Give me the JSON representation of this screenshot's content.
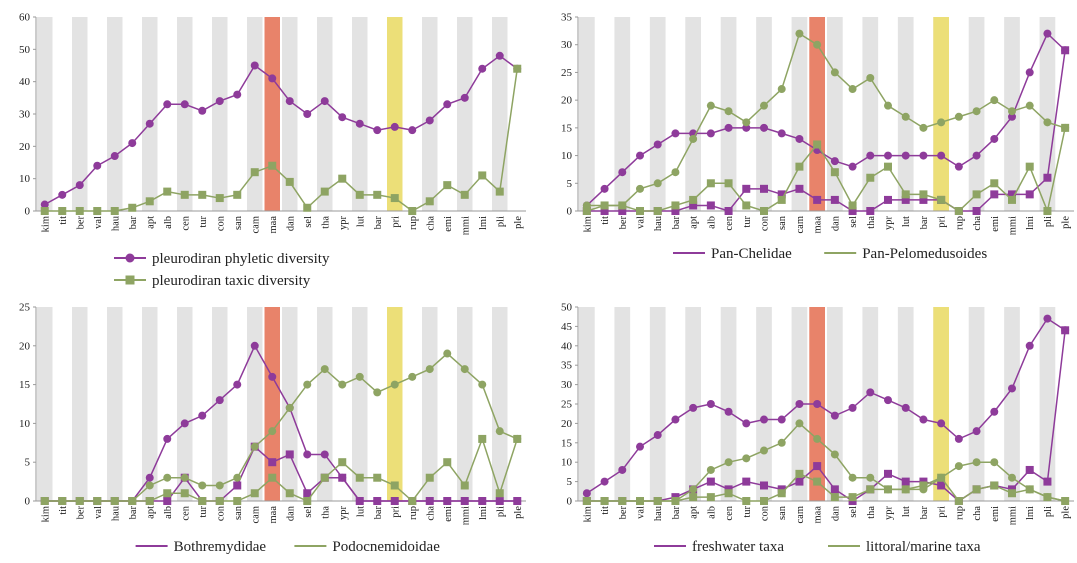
{
  "colors": {
    "purple": "#8e3b9a",
    "green": "#8ea463",
    "band_gray": "#e3e3e3",
    "highlight_red": "#e8836a",
    "highlight_yellow": "#ecdf78",
    "axis": "#9a9a9a"
  },
  "categories": [
    "kim",
    "tit",
    "ber",
    "val",
    "hau",
    "bar",
    "apt",
    "alb",
    "cen",
    "tur",
    "con",
    "san",
    "cam",
    "maa",
    "dan",
    "sel",
    "tha",
    "ypr",
    "lut",
    "bar",
    "pri",
    "rup",
    "cha",
    "emi",
    "mmi",
    "lmi",
    "pli",
    "ple"
  ],
  "chart_data": [
    {
      "id": "tl",
      "type": "line",
      "highlight_red_index": 13,
      "highlight_yellow_index": 20,
      "ylim": [
        0,
        60
      ],
      "yticks": [
        0,
        10,
        20,
        30,
        40,
        50,
        60
      ],
      "legend_layout": "stacked",
      "series": [
        {
          "name": "pleurodiran phyletic diversity",
          "color": "purple",
          "marker": "circle",
          "values": [
            2,
            5,
            8,
            14,
            17,
            21,
            27,
            33,
            33,
            31,
            34,
            36,
            45,
            41,
            34,
            30,
            34,
            29,
            27,
            25,
            26,
            25,
            28,
            33,
            35,
            44,
            48,
            44
          ]
        },
        {
          "name": "pleurodiran taxic diversity",
          "color": "green",
          "marker": "square",
          "values": [
            0,
            0,
            0,
            0,
            0,
            1,
            3,
            6,
            5,
            5,
            4,
            5,
            12,
            14,
            9,
            1,
            6,
            10,
            5,
            5,
            4,
            0,
            3,
            8,
            5,
            11,
            6,
            44
          ]
        }
      ]
    },
    {
      "id": "tr",
      "type": "line",
      "highlight_red_index": 13,
      "highlight_yellow_index": 20,
      "ylim": [
        0,
        35
      ],
      "yticks": [
        0,
        5,
        10,
        15,
        20,
        25,
        30,
        35
      ],
      "legend_layout": "row",
      "series": [
        {
          "name": "Pan-Chelidae",
          "color": "purple",
          "marker": "circle",
          "legend": true,
          "values": [
            1,
            4,
            7,
            10,
            12,
            14,
            14,
            14,
            15,
            15,
            15,
            14,
            13,
            11,
            9,
            8,
            10,
            10,
            10,
            10,
            10,
            8,
            10,
            13,
            17,
            25,
            32,
            29
          ]
        },
        {
          "name": "",
          "color": "purple",
          "marker": "square",
          "legend": false,
          "values": [
            0,
            0,
            0,
            0,
            0,
            0,
            1,
            1,
            0,
            4,
            4,
            3,
            4,
            2,
            2,
            0,
            0,
            2,
            2,
            2,
            2,
            0,
            0,
            3,
            3,
            3,
            6,
            29
          ]
        },
        {
          "name": "Pan-Pelomedusoides",
          "color": "green",
          "marker": "square",
          "legend": true,
          "values": [
            0,
            1,
            1,
            0,
            0,
            1,
            2,
            5,
            5,
            1,
            0,
            2,
            8,
            12,
            7,
            1,
            6,
            8,
            3,
            3,
            2,
            0,
            3,
            5,
            2,
            8,
            0,
            15
          ]
        },
        {
          "name": "",
          "color": "green",
          "marker": "circle",
          "legend": false,
          "values": [
            1,
            1,
            1,
            4,
            5,
            7,
            13,
            19,
            18,
            16,
            19,
            22,
            32,
            30,
            25,
            22,
            24,
            19,
            17,
            15,
            16,
            17,
            18,
            20,
            18,
            19,
            16,
            15
          ]
        }
      ]
    },
    {
      "id": "bl",
      "type": "line",
      "highlight_red_index": 13,
      "highlight_yellow_index": 20,
      "ylim": [
        0,
        25
      ],
      "yticks": [
        0,
        5,
        10,
        15,
        20,
        25
      ],
      "legend_layout": "row",
      "series": [
        {
          "name": "Bothremydidae",
          "color": "purple",
          "marker": "circle",
          "legend": true,
          "values": [
            0,
            0,
            0,
            0,
            0,
            0,
            3,
            8,
            10,
            11,
            13,
            15,
            20,
            16,
            12,
            6,
            6,
            3,
            0,
            0,
            0,
            0,
            0,
            0,
            0,
            0,
            0,
            0
          ]
        },
        {
          "name": "",
          "color": "purple",
          "marker": "square",
          "legend": false,
          "values": [
            0,
            0,
            0,
            0,
            0,
            0,
            0,
            0,
            3,
            0,
            0,
            2,
            7,
            5,
            6,
            1,
            3,
            3,
            0,
            0,
            0,
            0,
            0,
            0,
            0,
            0,
            0,
            0
          ]
        },
        {
          "name": "Podocnemidoidae",
          "color": "green",
          "marker": "circle",
          "legend": true,
          "values": [
            0,
            0,
            0,
            0,
            0,
            0,
            2,
            3,
            3,
            2,
            2,
            3,
            7,
            9,
            12,
            15,
            17,
            15,
            16,
            14,
            15,
            16,
            17,
            19,
            17,
            15,
            9,
            8
          ]
        },
        {
          "name": "",
          "color": "green",
          "marker": "square",
          "legend": false,
          "values": [
            0,
            0,
            0,
            0,
            0,
            0,
            0,
            1,
            1,
            0,
            0,
            0,
            1,
            3,
            1,
            0,
            3,
            5,
            3,
            3,
            2,
            0,
            3,
            5,
            2,
            8,
            1,
            8
          ]
        }
      ]
    },
    {
      "id": "br",
      "type": "line",
      "highlight_red_index": 13,
      "highlight_yellow_index": 20,
      "ylim": [
        0,
        50
      ],
      "yticks": [
        0,
        5,
        10,
        15,
        20,
        25,
        30,
        35,
        40,
        45,
        50
      ],
      "legend_layout": "row",
      "series": [
        {
          "name": "freshwater taxa",
          "color": "purple",
          "marker": "circle",
          "legend": true,
          "values": [
            2,
            5,
            8,
            14,
            17,
            21,
            24,
            25,
            23,
            20,
            21,
            21,
            25,
            25,
            22,
            24,
            28,
            26,
            24,
            21,
            20,
            16,
            18,
            23,
            29,
            40,
            47,
            44
          ]
        },
        {
          "name": "",
          "color": "purple",
          "marker": "square",
          "legend": false,
          "values": [
            0,
            0,
            0,
            0,
            0,
            1,
            3,
            5,
            3,
            5,
            4,
            3,
            5,
            9,
            3,
            0,
            3,
            7,
            5,
            5,
            4,
            0,
            3,
            4,
            3,
            8,
            5,
            44
          ]
        },
        {
          "name": "littoral/marine taxa",
          "color": "green",
          "marker": "circle",
          "legend": true,
          "values": [
            0,
            0,
            0,
            0,
            0,
            0,
            3,
            8,
            10,
            11,
            13,
            15,
            20,
            16,
            12,
            6,
            6,
            3,
            3,
            3,
            6,
            9,
            10,
            10,
            6,
            3,
            1,
            0
          ]
        },
        {
          "name": "",
          "color": "green",
          "marker": "square",
          "legend": false,
          "values": [
            0,
            0,
            0,
            0,
            0,
            0,
            1,
            1,
            2,
            0,
            0,
            2,
            7,
            5,
            1,
            1,
            3,
            3,
            3,
            4,
            6,
            0,
            3,
            4,
            2,
            3,
            1,
            0
          ]
        }
      ]
    }
  ]
}
